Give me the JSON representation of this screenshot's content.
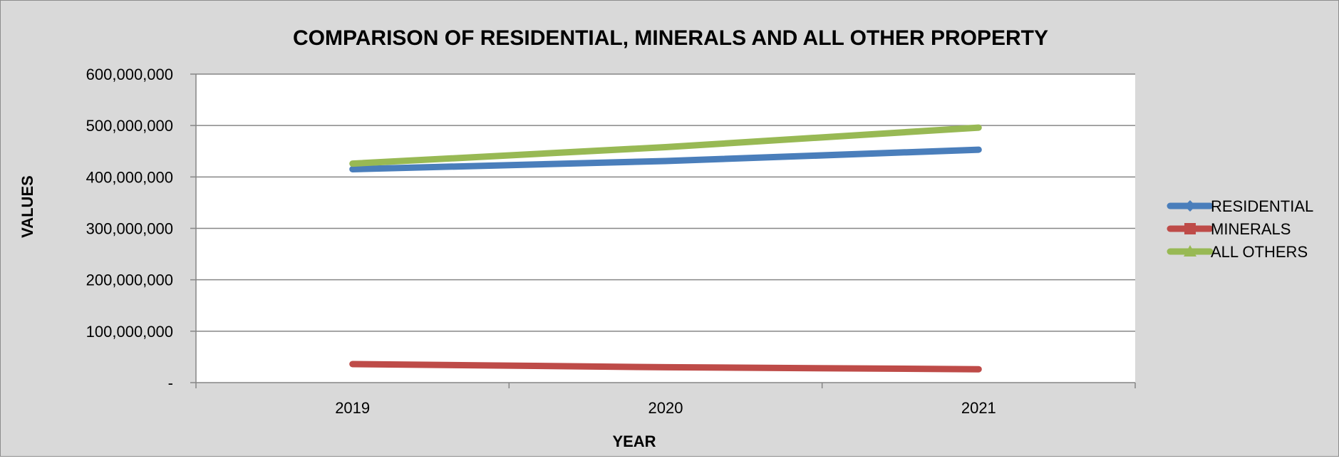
{
  "chart_data": {
    "type": "line",
    "title": "COMPARISON OF RESIDENTIAL, MINERALS AND ALL OTHER PROPERTY",
    "xlabel": "YEAR",
    "ylabel": "VALUES",
    "categories": [
      "2019",
      "2020",
      "2021"
    ],
    "ylim": [
      0,
      600000000
    ],
    "yticks": [
      {
        "value": 0,
        "label": "-"
      },
      {
        "value": 100000000,
        "label": "100,000,000"
      },
      {
        "value": 200000000,
        "label": "200,000,000"
      },
      {
        "value": 300000000,
        "label": "300,000,000"
      },
      {
        "value": 400000000,
        "label": "400,000,000"
      },
      {
        "value": 500000000,
        "label": "500,000,000"
      },
      {
        "value": 600000000,
        "label": "600,000,000"
      }
    ],
    "grid": true,
    "legend_position": "right",
    "series": [
      {
        "name": "RESIDENTIAL",
        "color": "#4a7ebb",
        "marker": "diamond",
        "values": [
          415000000,
          431000000,
          453000000
        ]
      },
      {
        "name": "MINERALS",
        "color": "#be4b48",
        "marker": "square",
        "values": [
          36000000,
          30000000,
          26000000
        ]
      },
      {
        "name": "ALL OTHERS",
        "color": "#98b954",
        "marker": "triangle",
        "values": [
          426000000,
          458000000,
          496000000
        ]
      }
    ]
  }
}
